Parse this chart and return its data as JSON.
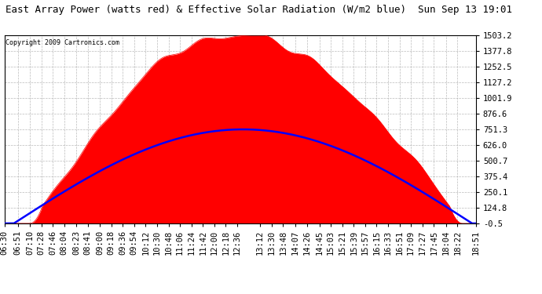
{
  "title": "East Array Power (watts red) & Effective Solar Radiation (W/m2 blue)  Sun Sep 13 19:01",
  "copyright": "Copyright 2009 Cartronics.com",
  "y_right_ticks": [
    1503.2,
    1377.8,
    1252.5,
    1127.2,
    1001.9,
    876.6,
    751.3,
    626.0,
    500.7,
    375.4,
    250.1,
    124.8,
    -0.5
  ],
  "ylim": [
    -0.5,
    1503.2
  ],
  "x_labels": [
    "06:30",
    "06:51",
    "07:10",
    "07:28",
    "07:46",
    "08:04",
    "08:23",
    "08:41",
    "09:00",
    "09:18",
    "09:36",
    "09:54",
    "10:12",
    "10:30",
    "10:48",
    "11:06",
    "11:24",
    "11:42",
    "12:00",
    "12:18",
    "12:36",
    "13:12",
    "13:30",
    "13:48",
    "14:07",
    "14:26",
    "14:45",
    "15:03",
    "15:21",
    "15:39",
    "15:57",
    "16:15",
    "16:33",
    "16:51",
    "17:09",
    "17:27",
    "17:45",
    "18:04",
    "18:22",
    "18:51"
  ],
  "background_color": "#ffffff",
  "plot_bg_color": "#ffffff",
  "grid_color": "#aaaaaa",
  "red_fill_color": "#ff0000",
  "blue_line_color": "#0000ff",
  "title_fontsize": 9,
  "tick_fontsize": 7.5,
  "power_rise_min": 430,
  "power_set_min": 1110,
  "power_max": 1503.2,
  "solar_rise_min": 405,
  "solar_set_min": 1125,
  "solar_max": 751.3,
  "solar_peak_min": 765
}
